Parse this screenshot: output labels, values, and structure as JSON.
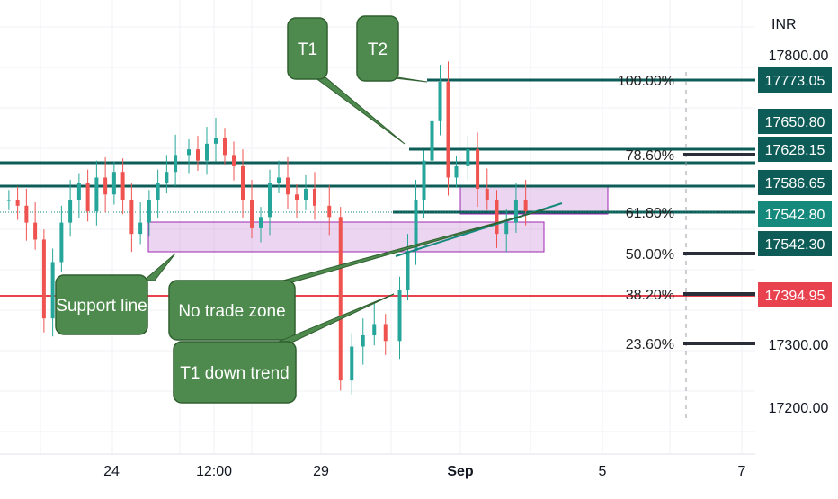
{
  "chart_data": {
    "type": "candlestick",
    "currency": "INR",
    "x_tick_labels": [
      "24",
      "12:00",
      "29",
      "Sep",
      "5",
      "7"
    ],
    "y_tick_labels": [
      "17800.00",
      "17300.00",
      "17200.00"
    ],
    "ylim": [
      17150,
      17830
    ],
    "price_labels": [
      {
        "value": 17773.05,
        "text": "17773.05",
        "color": "#0e5c57"
      },
      {
        "value": 17650.8,
        "text": "17650.80",
        "color": "#0e5c57"
      },
      {
        "value": 17628.15,
        "text": "17628.15",
        "color": "#0e5c57"
      },
      {
        "value": 17586.65,
        "text": "17586.65",
        "color": "#0e5c57"
      },
      {
        "value": 17542.8,
        "text": "17542.80",
        "color": "#14897c"
      },
      {
        "value": 17542.3,
        "text": "17542.30",
        "color": "#0e5c57"
      },
      {
        "value": 17394.95,
        "text": "17394.95",
        "color": "#e8424f"
      }
    ],
    "fibonacci_levels": [
      {
        "label": "100.00%",
        "value": 17773.05
      },
      {
        "label": "78.60%",
        "value": 17628.15
      },
      {
        "label": "61.80%",
        "value": 17542.8
      },
      {
        "label": "50.00%",
        "value": 17474.0
      },
      {
        "label": "38.20%",
        "value": 17394.95
      },
      {
        "label": "23.60%",
        "value": 17310.0
      }
    ],
    "horizontal_lines": [
      {
        "value": 17773.05,
        "color": "#0e5c57"
      },
      {
        "value": 17628.15,
        "color": "#0e5c57"
      },
      {
        "value": 17586.65,
        "color": "#0e5c57"
      },
      {
        "value": 17542.8,
        "color": "#0e5c57"
      },
      {
        "value": 17394.95,
        "color": "#e8424f"
      }
    ],
    "zones": [
      {
        "name": "no-trade-zone",
        "low": 17475,
        "high": 17525
      },
      {
        "name": "upper-zone",
        "low": 17542,
        "high": 17586
      }
    ],
    "callouts": [
      {
        "text": "T1"
      },
      {
        "text": "T2"
      },
      {
        "text": "Support line"
      },
      {
        "text": "No trade zone"
      },
      {
        "text": "T1 down trend"
      }
    ],
    "candles_approx_closes": [
      17560,
      17550,
      17520,
      17490,
      17350,
      17450,
      17520,
      17560,
      17590,
      17540,
      17600,
      17570,
      17610,
      17560,
      17500,
      17520,
      17560,
      17590,
      17610,
      17640,
      17650,
      17630,
      17660,
      17670,
      17640,
      17620,
      17560,
      17510,
      17530,
      17590,
      17600,
      17570,
      17560,
      17580,
      17550,
      17530,
      17240,
      17300,
      17320,
      17340,
      17310,
      17400,
      17470,
      17560,
      17630,
      17700,
      17770,
      17600,
      17620,
      17650,
      17580,
      17560,
      17500,
      17520,
      17560,
      17540
    ]
  }
}
